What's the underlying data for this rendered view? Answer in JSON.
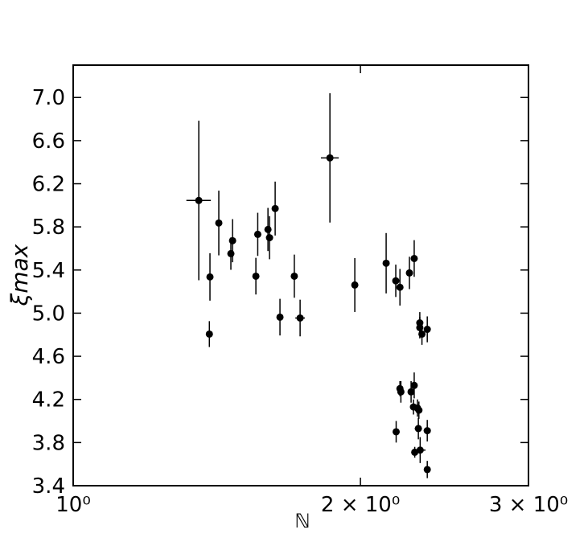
{
  "chart_data": {
    "type": "scatter",
    "xlabel": "ℕ",
    "ylabel": "ξmax",
    "xscale": "log",
    "xlim": [
      1,
      3
    ],
    "ylim": [
      3.4,
      7.3
    ],
    "xticks": [
      {
        "value": 1,
        "label": "10⁰"
      },
      {
        "value": 2,
        "label": "2 × 10⁰"
      },
      {
        "value": 3,
        "label": "3 × 10⁰"
      }
    ],
    "yticks": [
      {
        "value": 3.4,
        "label": "3.4"
      },
      {
        "value": 3.8,
        "label": "3.8"
      },
      {
        "value": 4.2,
        "label": "4.2"
      },
      {
        "value": 4.6,
        "label": "4.6"
      },
      {
        "value": 5.0,
        "label": "5.0"
      },
      {
        "value": 5.4,
        "label": "5.4"
      },
      {
        "value": 5.8,
        "label": "5.8"
      },
      {
        "value": 6.2,
        "label": "6.2"
      },
      {
        "value": 6.6,
        "label": "6.6"
      },
      {
        "value": 7.0,
        "label": "7.0"
      }
    ],
    "series": [
      {
        "color": "#000000",
        "x": [
          1.354,
          1.391,
          1.389,
          1.421,
          1.463,
          1.469,
          1.554,
          1.561,
          1.6,
          1.606,
          1.628,
          1.647,
          1.705,
          1.729,
          1.858,
          1.973,
          2.128,
          2.178,
          2.2,
          2.251,
          2.277,
          2.308,
          2.308,
          2.32,
          2.35,
          2.2,
          2.205,
          2.26,
          2.277,
          2.273,
          2.295,
          2.303,
          2.18,
          2.3,
          2.35,
          2.28,
          2.31,
          2.35
        ],
        "y": [
          6.045,
          5.336,
          4.806,
          5.836,
          5.552,
          5.672,
          5.343,
          5.731,
          5.776,
          5.7,
          5.97,
          4.963,
          5.343,
          4.955,
          6.44,
          5.261,
          5.463,
          5.3,
          5.24,
          5.373,
          5.507,
          4.91,
          4.866,
          4.806,
          4.85,
          4.3,
          4.27,
          4.27,
          4.33,
          4.13,
          4.12,
          4.1,
          3.9,
          3.93,
          3.91,
          3.71,
          3.73,
          3.55
        ],
        "yerr": [
          0.74,
          0.22,
          0.12,
          0.3,
          0.15,
          0.2,
          0.17,
          0.2,
          0.2,
          0.2,
          0.25,
          0.17,
          0.2,
          0.17,
          0.6,
          0.25,
          0.28,
          0.15,
          0.17,
          0.15,
          0.17,
          0.1,
          0.1,
          0.1,
          0.12,
          0.07,
          0.1,
          0.1,
          0.12,
          0.07,
          0.08,
          0.08,
          0.1,
          0.1,
          0.1,
          0.05,
          0.12,
          0.08
        ],
        "xerr": [
          0.04,
          0.01,
          0.01,
          0.01,
          0.01,
          0.01,
          0.01,
          0.01,
          0.01,
          0.01,
          0.01,
          0.01,
          0.01,
          0.02,
          0.04,
          0.01,
          0.01,
          0.01,
          0.01,
          0.01,
          0.01,
          0.01,
          0.01,
          0.01,
          0.01,
          0.01,
          0.01,
          0.01,
          0.01,
          0.01,
          0.01,
          0.01,
          0.01,
          0.02,
          0.02,
          0.01,
          0.03,
          0.01
        ]
      }
    ]
  }
}
